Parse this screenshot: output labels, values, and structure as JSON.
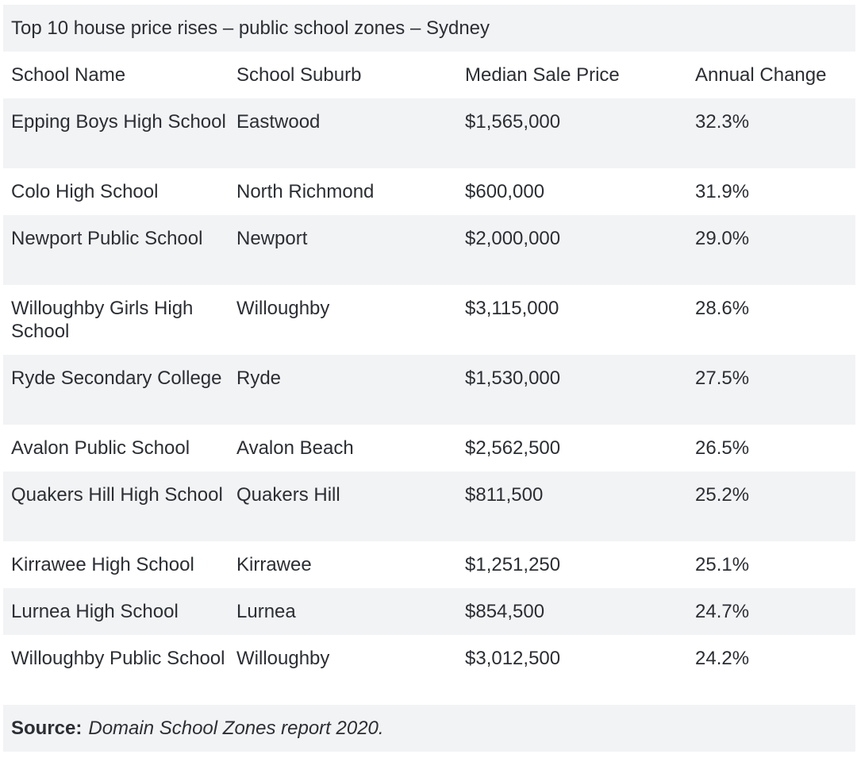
{
  "caption": "Top 10 house price rises – public school zones – Sydney",
  "headers": [
    "School Name",
    "School Suburb",
    "Median Sale Price",
    "Annual Change"
  ],
  "rows": [
    {
      "school": "Epping Boys High School",
      "suburb": "Eastwood",
      "price": "$1,565,000",
      "change": "32.3%"
    },
    {
      "school": "Colo High School",
      "suburb": "North Richmond",
      "price": "$600,000",
      "change": "31.9%"
    },
    {
      "school": "Newport Public School",
      "suburb": "Newport",
      "price": "$2,000,000",
      "change": "29.0%"
    },
    {
      "school": "Willoughby Girls High School",
      "suburb": "Willoughby",
      "price": "$3,115,000",
      "change": "28.6%"
    },
    {
      "school": "Ryde Secondary College",
      "suburb": "Ryde",
      "price": "$1,530,000",
      "change": "27.5%"
    },
    {
      "school": "Avalon Public School",
      "suburb": "Avalon Beach",
      "price": "$2,562,500",
      "change": "26.5%"
    },
    {
      "school": "Quakers Hill High School",
      "suburb": "Quakers Hill",
      "price": "$811,500",
      "change": "25.2%"
    },
    {
      "school": "Kirrawee High School",
      "suburb": "Kirrawee",
      "price": "$1,251,250",
      "change": "25.1%"
    },
    {
      "school": "Lurnea High School",
      "suburb": "Lurnea",
      "price": "$854,500",
      "change": "24.7%"
    },
    {
      "school": "Willoughby Public School",
      "suburb": "Willoughby",
      "price": "$3,012,500",
      "change": "24.2%"
    }
  ],
  "footer": {
    "label": "Source:",
    "text": "Domain School Zones report 2020."
  },
  "colors": {
    "stripe": "#f2f3f5",
    "text": "#2b2e33"
  }
}
